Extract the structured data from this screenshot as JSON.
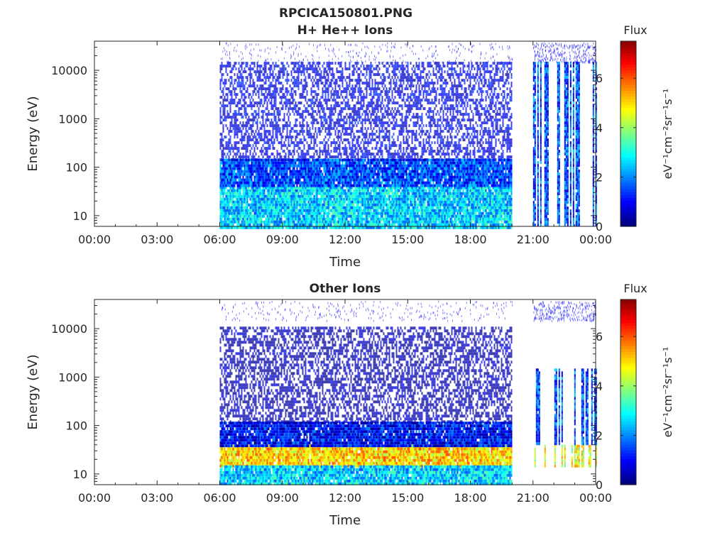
{
  "figure": {
    "main_title": "RPCICA150801.PNG"
  },
  "chart_data": [
    {
      "type": "heatmap",
      "title": "H+ He++ Ions",
      "xlabel": "Time",
      "ylabel": "Energy (eV)",
      "y_scale": "log",
      "ylim": [
        6,
        40000
      ],
      "x_ticks": [
        "00:00",
        "03:00",
        "06:00",
        "09:00",
        "12:00",
        "15:00",
        "18:00",
        "21:00",
        "00:00"
      ],
      "y_ticks": [
        "10",
        "100",
        "1000",
        "10000"
      ],
      "colorbar": {
        "title": "Flux",
        "label": "eV⁻¹cm⁻²sr⁻¹s⁻¹",
        "range": [
          0,
          7.5
        ],
        "ticks": [
          "0",
          "2",
          "4",
          "6"
        ]
      },
      "colormap": "jet",
      "grid": false,
      "data_description": {
        "coverage_hours": [
          [
            6.0,
            20.0
          ],
          [
            21.0,
            24.0
          ]
        ],
        "bands": [
          {
            "hours": [
              6.0,
              20.0
            ],
            "energy_eV": [
              6,
              40
            ],
            "level": 2.5
          },
          {
            "hours": [
              6.0,
              20.0
            ],
            "energy_eV": [
              40,
              150
            ],
            "level": 1.5
          },
          {
            "hours": [
              6.0,
              20.0
            ],
            "energy_eV": [
              150,
              15000
            ],
            "level": 0.8
          },
          {
            "hours": [
              21.0,
              24.0
            ],
            "energy_eV": [
              6,
              15000
            ],
            "level": 1.5
          }
        ]
      }
    },
    {
      "type": "heatmap",
      "title": "Other Ions",
      "xlabel": "Time",
      "ylabel": "Energy (eV)",
      "y_scale": "log",
      "ylim": [
        6,
        40000
      ],
      "x_ticks": [
        "00:00",
        "03:00",
        "06:00",
        "09:00",
        "12:00",
        "15:00",
        "18:00",
        "21:00",
        "00:00"
      ],
      "y_ticks": [
        "10",
        "100",
        "1000",
        "10000"
      ],
      "colorbar": {
        "title": "Flux",
        "label": "eV⁻¹cm⁻²sr⁻¹s⁻¹",
        "range": [
          0,
          7.5
        ],
        "ticks": [
          "0",
          "2",
          "4",
          "6"
        ]
      },
      "colormap": "jet",
      "grid": false,
      "data_description": {
        "coverage_hours": [
          [
            6.0,
            20.0
          ],
          [
            21.0,
            24.0
          ]
        ],
        "bands": [
          {
            "hours": [
              6.0,
              20.0
            ],
            "energy_eV": [
              15,
              40
            ],
            "level": 5.0
          },
          {
            "hours": [
              6.0,
              20.0
            ],
            "energy_eV": [
              6,
              15
            ],
            "level": 2.5
          },
          {
            "hours": [
              6.0,
              20.0
            ],
            "energy_eV": [
              40,
              120
            ],
            "level": 1.0
          },
          {
            "hours": [
              6.0,
              20.0
            ],
            "energy_eV": [
              120,
              11000
            ],
            "level": 0.3
          },
          {
            "hours": [
              21.0,
              24.0
            ],
            "energy_eV": [
              15,
              40
            ],
            "level": 4.5
          },
          {
            "hours": [
              21.0,
              24.0
            ],
            "energy_eV": [
              40,
              1500
            ],
            "level": 1.5
          }
        ]
      }
    }
  ]
}
